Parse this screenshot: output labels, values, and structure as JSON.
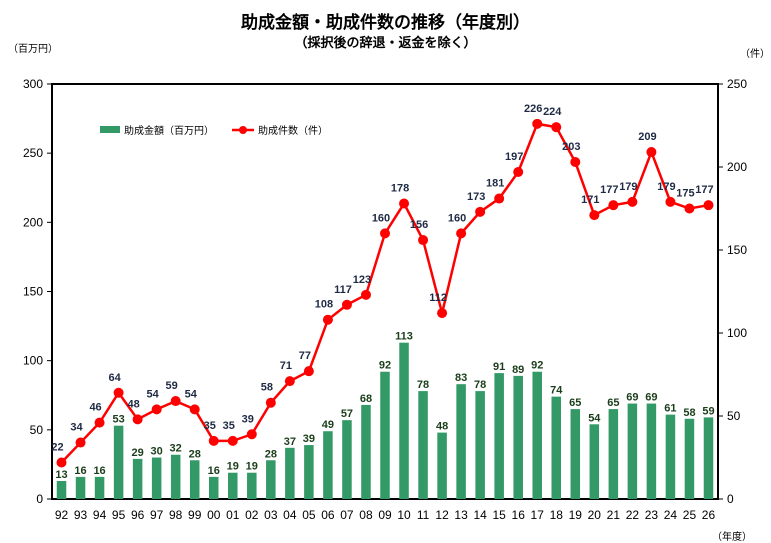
{
  "chart_data": {
    "type": "bar+line",
    "title": "助成金額・助成件数の推移（年度別）",
    "subtitle": "（採択後の辞退・返金を除く）",
    "ylabel_left": "（百万円）",
    "ylabel_right": "（件）",
    "xlabel": "（年度）",
    "categories": [
      "92",
      "93",
      "94",
      "95",
      "96",
      "97",
      "98",
      "99",
      "00",
      "01",
      "02",
      "03",
      "04",
      "05",
      "06",
      "07",
      "08",
      "09",
      "10",
      "11",
      "12",
      "13",
      "14",
      "15",
      "16",
      "17",
      "18",
      "19",
      "20",
      "21",
      "22",
      "23",
      "24",
      "25",
      "26"
    ],
    "series": [
      {
        "name": "助成金額（百万円）",
        "type": "bar",
        "axis": "left",
        "color": "#339966",
        "values": [
          13,
          16,
          16,
          53,
          29,
          30,
          32,
          28,
          16,
          19,
          19,
          28,
          37,
          39,
          49,
          57,
          68,
          92,
          113,
          78,
          48,
          83,
          78,
          91,
          89,
          92,
          74,
          65,
          54,
          65,
          69,
          69,
          61,
          58,
          59
        ]
      },
      {
        "name": "助成件数（件）",
        "type": "line",
        "axis": "right",
        "color": "#ff0000",
        "values": [
          22,
          34,
          46,
          64,
          48,
          54,
          59,
          54,
          35,
          35,
          39,
          58,
          71,
          77,
          108,
          117,
          123,
          160,
          178,
          156,
          112,
          160,
          173,
          181,
          197,
          226,
          224,
          203,
          171,
          177,
          179,
          209,
          179,
          175,
          177
        ]
      }
    ],
    "ylim_left": [
      0,
      300
    ],
    "ylim_right": [
      0,
      250
    ],
    "yticks_left": [
      0,
      50,
      100,
      150,
      200,
      250,
      300
    ],
    "yticks_right": [
      0,
      50,
      100,
      150,
      200,
      250
    ],
    "legend": "top-left",
    "grid": false,
    "bar_label_color": "#1a3d1a",
    "line_label_color": "#1f2a44"
  }
}
